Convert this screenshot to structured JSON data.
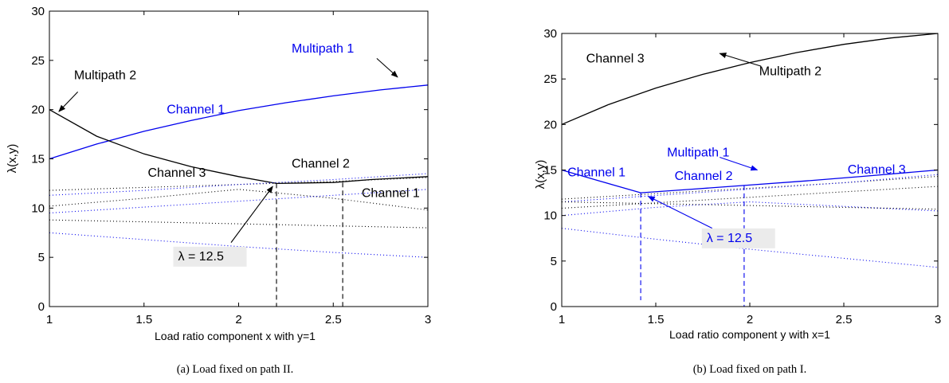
{
  "colors": {
    "black": "#000000",
    "blue": "#0000ee",
    "box": "#ebebeb"
  },
  "chart_data": [
    {
      "type": "line",
      "caption": "(a) Load fixed on path II.",
      "xlabel": "Load ratio component x with y=1",
      "ylabel": "λ(x,y)",
      "xlim": [
        1,
        3
      ],
      "ylim": [
        0,
        30
      ],
      "xticks": [
        1,
        1.5,
        2,
        2.5,
        3
      ],
      "xtick_labels": [
        "1",
        "1.5",
        "2",
        "2.5",
        "3"
      ],
      "yticks": [
        0,
        5,
        10,
        15,
        20,
        25,
        30
      ],
      "ytick_labels": [
        "0",
        "5",
        "10",
        "15",
        "20",
        "25",
        "30"
      ],
      "grid": false,
      "series": [
        {
          "style": "solid",
          "color": "#0000ee",
          "x": [
            1,
            1.25,
            1.5,
            1.75,
            2,
            2.25,
            2.5,
            2.75,
            3
          ],
          "y": [
            15,
            16.5,
            17.8,
            18.9,
            19.9,
            20.7,
            21.4,
            22.0,
            22.5
          ]
        },
        {
          "style": "solid",
          "color": "#000000",
          "x": [
            1,
            1.25,
            1.5,
            1.75,
            2,
            2.2,
            2.5,
            2.7,
            3
          ],
          "y": [
            20,
            17.3,
            15.5,
            14.2,
            13.2,
            12.5,
            12.6,
            12.9,
            13.2
          ]
        },
        {
          "style": "dotted",
          "color": "#000000",
          "x": [
            1,
            1.5,
            2,
            2.5,
            3
          ],
          "y": [
            11.8,
            12.1,
            12.4,
            12.7,
            13.1
          ]
        },
        {
          "style": "dotted",
          "color": "#0000ee",
          "x": [
            1,
            1.5,
            2,
            2.5,
            3
          ],
          "y": [
            11.3,
            11.8,
            12.4,
            12.9,
            13.5
          ]
        },
        {
          "style": "dotted",
          "color": "#000000",
          "x": [
            1,
            1.5,
            2,
            2.5,
            3
          ],
          "y": [
            10.2,
            11.0,
            11.9,
            11.0,
            9.8
          ]
        },
        {
          "style": "dotted",
          "color": "#0000ee",
          "x": [
            1,
            1.5,
            2,
            2.5,
            3
          ],
          "y": [
            9.5,
            10.1,
            10.7,
            11.3,
            11.9
          ]
        },
        {
          "style": "dotted",
          "color": "#000000",
          "x": [
            1,
            1.5,
            2,
            2.5,
            3
          ],
          "y": [
            8.8,
            8.6,
            8.4,
            8.2,
            8.0
          ]
        },
        {
          "style": "dotted",
          "color": "#0000ee",
          "x": [
            1,
            1.5,
            2,
            2.5,
            3
          ],
          "y": [
            7.5,
            6.8,
            6.1,
            5.5,
            5.0
          ]
        },
        {
          "style": "dashed",
          "color": "#000000",
          "x": [
            2.2,
            2.2
          ],
          "y": [
            12.5,
            0
          ]
        },
        {
          "style": "dashed",
          "color": "#000000",
          "x": [
            2.55,
            2.55
          ],
          "y": [
            12.6,
            0
          ]
        }
      ],
      "annotations": [
        {
          "text": "Multipath 1",
          "color": "#0000ee",
          "x": 2.28,
          "y": 25.8
        },
        {
          "text": "Multipath 2",
          "color": "#000000",
          "x": 1.13,
          "y": 23.1
        },
        {
          "text": "Channel 1",
          "color": "#0000ee",
          "x": 1.62,
          "y": 19.6
        },
        {
          "text": "Channel 3",
          "color": "#000000",
          "x": 1.52,
          "y": 13.2
        },
        {
          "text": "Channel 2",
          "color": "#000000",
          "x": 2.28,
          "y": 14.1
        },
        {
          "text": "Channel 1",
          "color": "#000000",
          "x": 2.65,
          "y": 11.1
        },
        {
          "text": "λ = 12.5",
          "color": "#000000",
          "x": 1.68,
          "y": 4.7,
          "box": true
        }
      ],
      "arrows": [
        {
          "from": [
            2.73,
            25.2
          ],
          "to": [
            2.84,
            23.3
          ],
          "color": "#000000"
        },
        {
          "from": [
            1.15,
            21.8
          ],
          "to": [
            1.05,
            19.8
          ],
          "color": "#000000"
        },
        {
          "from": [
            1.96,
            6.5
          ],
          "to": [
            2.18,
            12.2
          ],
          "color": "#000000"
        }
      ]
    },
    {
      "type": "line",
      "caption": "(b) Load fixed on path I.",
      "xlabel": "Load ratio component y with x=1",
      "ylabel": "λ(x,y)",
      "xlim": [
        1,
        3
      ],
      "ylim": [
        0,
        30
      ],
      "xticks": [
        1,
        1.5,
        2,
        2.5,
        3
      ],
      "xtick_labels": [
        "1",
        "1.5",
        "2",
        "2.5",
        "3"
      ],
      "yticks": [
        0,
        5,
        10,
        15,
        20,
        25,
        30
      ],
      "ytick_labels": [
        "0",
        "5",
        "10",
        "15",
        "20",
        "25",
        "30"
      ],
      "grid": false,
      "series": [
        {
          "style": "solid",
          "color": "#000000",
          "x": [
            1,
            1.25,
            1.5,
            1.75,
            2,
            2.25,
            2.5,
            2.75,
            3
          ],
          "y": [
            20,
            22.2,
            24.0,
            25.5,
            26.8,
            27.9,
            28.8,
            29.5,
            30
          ]
        },
        {
          "style": "solid",
          "color": "#0000ee",
          "x": [
            1,
            1.2,
            1.42,
            1.7,
            1.97,
            2.3,
            2.6,
            3
          ],
          "y": [
            15,
            13.8,
            12.5,
            12.9,
            13.3,
            13.8,
            14.3,
            15
          ]
        },
        {
          "style": "dotted",
          "color": "#000000",
          "x": [
            1,
            1.5,
            2,
            2.5,
            3
          ],
          "y": [
            11.8,
            12.4,
            13.0,
            13.6,
            14.3
          ]
        },
        {
          "style": "dotted",
          "color": "#0000ee",
          "x": [
            1,
            1.5,
            2,
            2.5,
            3
          ],
          "y": [
            11.5,
            12.2,
            12.9,
            13.6,
            14.5
          ]
        },
        {
          "style": "dotted",
          "color": "#000000",
          "x": [
            1,
            1.5,
            2,
            2.5,
            3
          ],
          "y": [
            10.8,
            11.4,
            12.0,
            12.6,
            13.2
          ]
        },
        {
          "style": "dotted",
          "color": "#0000ee",
          "x": [
            1,
            1.5,
            2,
            2.5,
            3
          ],
          "y": [
            10.0,
            10.9,
            11.5,
            11.0,
            10.5
          ]
        },
        {
          "style": "dotted",
          "color": "#000000",
          "x": [
            1,
            1.5,
            2,
            2.5,
            3
          ],
          "y": [
            11.5,
            11.3,
            11.1,
            10.9,
            10.7
          ]
        },
        {
          "style": "dotted",
          "color": "#0000ee",
          "x": [
            1,
            1.5,
            2,
            2.5,
            3
          ],
          "y": [
            8.6,
            7.4,
            6.3,
            5.3,
            4.3
          ]
        },
        {
          "style": "dashed",
          "color": "#0000ee",
          "x": [
            1.42,
            1.42
          ],
          "y": [
            12.5,
            0.7
          ]
        },
        {
          "style": "dashed",
          "color": "#0000ee",
          "x": [
            1.97,
            1.97
          ],
          "y": [
            13.3,
            0
          ]
        }
      ],
      "annotations": [
        {
          "text": "Channel 3",
          "color": "#000000",
          "x": 1.13,
          "y": 26.8
        },
        {
          "text": "Multipath 2",
          "color": "#000000",
          "x": 2.05,
          "y": 25.4
        },
        {
          "text": "Multipath 1",
          "color": "#0000ee",
          "x": 1.56,
          "y": 16.5
        },
        {
          "text": "Channel 1",
          "color": "#0000ee",
          "x": 1.03,
          "y": 14.3
        },
        {
          "text": "Channel 2",
          "color": "#0000ee",
          "x": 1.6,
          "y": 13.9
        },
        {
          "text": "Channel 3",
          "color": "#0000ee",
          "x": 2.52,
          "y": 14.6
        },
        {
          "text": "λ = 12.5",
          "color": "#0000ee",
          "x": 1.77,
          "y": 7.1,
          "box": true
        }
      ],
      "arrows": [
        {
          "from": [
            2.06,
            26.4
          ],
          "to": [
            1.84,
            27.8
          ],
          "color": "#000000"
        },
        {
          "from": [
            1.84,
            16.4
          ],
          "to": [
            2.04,
            15.0
          ],
          "color": "#0000ee"
        },
        {
          "from": [
            1.8,
            8.6
          ],
          "to": [
            1.46,
            12.1
          ],
          "color": "#0000ee"
        }
      ]
    }
  ]
}
